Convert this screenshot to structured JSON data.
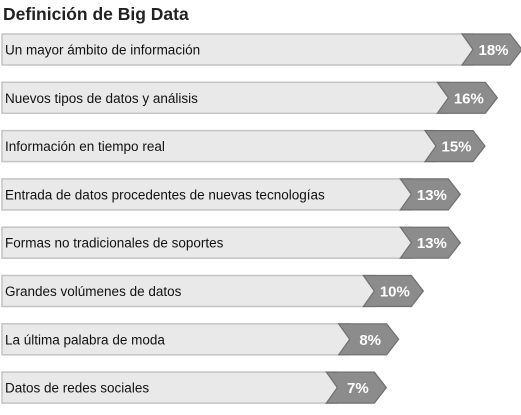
{
  "chart_data": {
    "type": "bar",
    "orientation": "horizontal",
    "title": "Definición de Big Data",
    "categories": [
      "Un mayor ámbito de información",
      "Nuevos tipos de datos y análisis",
      "Información en tiempo real",
      "Entrada de datos procedentes de nuevas tecnologías",
      "Formas no tradicionales de soportes",
      "Grandes volúmenes de datos",
      "La última palabra de moda",
      "Datos de redes sociales"
    ],
    "values": [
      18,
      16,
      15,
      13,
      13,
      10,
      8,
      7
    ],
    "value_labels": [
      "18%",
      "16%",
      "15%",
      "13%",
      "13%",
      "10%",
      "8%",
      "7%"
    ],
    "unit": "%",
    "xlim": [
      0,
      18
    ],
    "colors": {
      "bar_fill": "#e9e9e9",
      "bar_stroke": "#c4c4c4",
      "marker_fill": "#8c8c8c",
      "marker_stroke": "#6f6f6f",
      "value_text": "#ffffff",
      "label_text": "#111111",
      "title_text": "#222222"
    }
  }
}
